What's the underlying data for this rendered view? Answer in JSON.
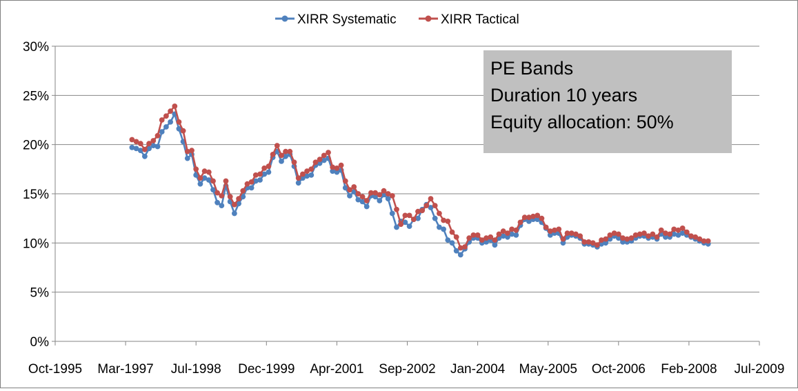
{
  "chart_data": {
    "type": "line",
    "title": "",
    "xlabel": "",
    "ylabel": "",
    "x_ticks": [
      "Oct-1995",
      "Mar-1997",
      "Jul-1998",
      "Dec-1999",
      "Apr-2001",
      "Sep-2002",
      "Jan-2004",
      "May-2005",
      "Oct-2006",
      "Feb-2008",
      "Jul-2009"
    ],
    "x_range": [
      "1995-10",
      "2009-07"
    ],
    "y_ticks": [
      "0%",
      "5%",
      "10%",
      "15%",
      "20%",
      "25%",
      "30%"
    ],
    "ylim": [
      0,
      30
    ],
    "grid": "horizontal",
    "legend_position": "top",
    "annotation": [
      "PE Bands",
      "Duration 10 years",
      "Equity allocation: 50%"
    ],
    "colors": {
      "systematic": "#4f81bd",
      "tactical": "#c0504d",
      "annotation_box": "#c0c0c0",
      "grid": "#868686"
    },
    "start_month": "1997-04",
    "series": [
      {
        "name": "XIRR Systematic",
        "values": [
          19.7,
          19.6,
          19.4,
          18.8,
          19.6,
          19.9,
          19.8,
          21.3,
          21.8,
          22.3,
          23.1,
          21.6,
          20.3,
          18.6,
          19.0,
          16.9,
          16.0,
          16.6,
          16.4,
          15.4,
          14.1,
          13.8,
          15.8,
          14.2,
          13.0,
          14.0,
          14.7,
          15.6,
          15.6,
          16.3,
          16.4,
          17.0,
          17.2,
          18.7,
          19.3,
          18.3,
          18.8,
          19.0,
          17.8,
          16.1,
          16.6,
          16.8,
          16.9,
          17.9,
          18.1,
          18.4,
          18.6,
          17.3,
          17.2,
          17.4,
          15.6,
          14.8,
          15.2,
          14.4,
          14.2,
          13.7,
          14.8,
          14.7,
          14.3,
          14.9,
          14.5,
          13.0,
          11.6,
          12.2,
          12.1,
          11.7,
          12.4,
          12.5,
          13.4,
          13.9,
          13.6,
          12.5,
          11.6,
          11.4,
          10.3,
          10.0,
          9.2,
          8.8,
          9.4,
          10.1,
          10.5,
          10.5,
          10.0,
          10.1,
          10.3,
          9.8,
          10.5,
          10.7,
          10.6,
          10.9,
          10.8,
          11.8,
          12.4,
          12.2,
          12.4,
          12.4,
          12.1,
          11.5,
          10.8,
          11.0,
          11.0,
          10.0,
          10.6,
          10.8,
          10.7,
          10.5,
          9.9,
          9.9,
          9.8,
          9.6,
          9.9,
          10.0,
          10.4,
          10.7,
          10.5,
          10.1,
          10.1,
          10.2,
          10.5,
          10.7,
          10.7,
          10.5,
          10.6,
          10.4,
          10.9,
          10.6,
          10.6,
          10.9,
          10.8,
          11.0,
          10.8,
          10.6,
          10.4,
          10.2,
          10.0,
          9.9
        ]
      },
      {
        "name": "XIRR Tactical",
        "values": [
          20.5,
          20.3,
          20.1,
          19.5,
          20.1,
          20.4,
          20.9,
          22.5,
          22.9,
          23.4,
          23.9,
          22.3,
          21.4,
          19.3,
          19.4,
          17.5,
          16.6,
          17.3,
          17.2,
          16.3,
          15.1,
          14.8,
          16.3,
          14.7,
          13.9,
          14.5,
          15.3,
          16.0,
          16.2,
          16.9,
          17.0,
          17.6,
          17.8,
          19.0,
          19.9,
          18.9,
          19.3,
          19.3,
          18.2,
          16.6,
          17.0,
          17.3,
          17.5,
          18.2,
          18.5,
          18.9,
          19.2,
          17.7,
          17.6,
          17.9,
          16.3,
          15.4,
          15.7,
          15.0,
          14.7,
          14.3,
          15.1,
          15.1,
          14.9,
          15.3,
          15.0,
          14.8,
          13.4,
          11.9,
          12.8,
          12.8,
          12.4,
          13.2,
          13.3,
          13.8,
          14.5,
          13.8,
          13.0,
          12.3,
          12.2,
          11.1,
          10.6,
          9.5,
          9.6,
          10.5,
          10.8,
          10.8,
          10.3,
          10.5,
          10.6,
          10.3,
          10.9,
          11.2,
          11.0,
          11.4,
          11.3,
          12.1,
          12.6,
          12.6,
          12.7,
          12.8,
          12.5,
          11.6,
          11.2,
          11.3,
          11.4,
          10.4,
          11.0,
          11.0,
          10.9,
          10.7,
          10.1,
          10.1,
          10.0,
          9.8,
          10.3,
          10.4,
          10.8,
          11.0,
          10.9,
          10.5,
          10.4,
          10.5,
          10.8,
          10.9,
          11.0,
          10.7,
          10.9,
          10.6,
          11.3,
          11.0,
          10.9,
          11.4,
          11.3,
          11.5,
          11.1,
          10.7,
          10.6,
          10.4,
          10.2,
          10.2
        ]
      }
    ]
  }
}
